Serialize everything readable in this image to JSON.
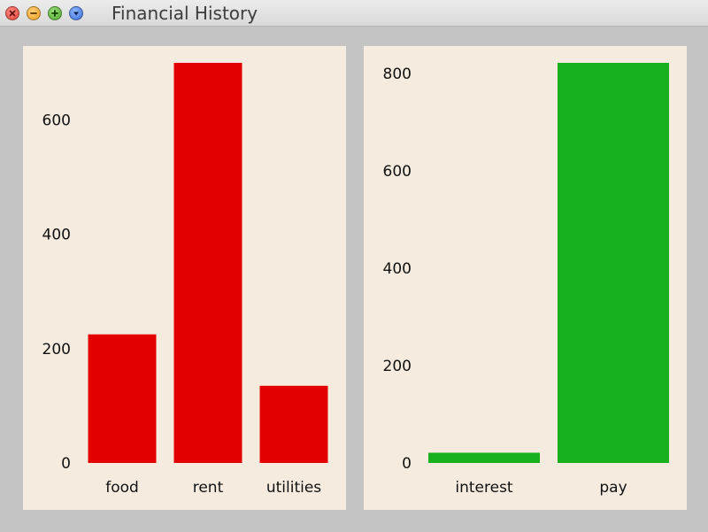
{
  "window": {
    "title": "Financial History"
  },
  "colors": {
    "expense": "#e30000",
    "income": "#18b01e",
    "panel_bg": "#f5ecdf"
  },
  "chart_data": [
    {
      "type": "bar",
      "categories": [
        "food",
        "rent",
        "utilities"
      ],
      "values": [
        225,
        700,
        135
      ],
      "color": "#e30000",
      "ylim": [
        0,
        700
      ],
      "yticks": [
        0,
        200,
        400,
        600
      ],
      "ytick_labels": [
        "0",
        "200",
        "400",
        "600"
      ]
    },
    {
      "type": "bar",
      "categories": [
        "interest",
        "pay"
      ],
      "values": [
        21,
        822
      ],
      "color": "#18b01e",
      "ylim": [
        0,
        822
      ],
      "yticks": [
        0,
        200,
        400,
        600,
        800
      ],
      "ytick_labels": [
        "0",
        "200",
        "400",
        "600",
        "800"
      ]
    }
  ]
}
